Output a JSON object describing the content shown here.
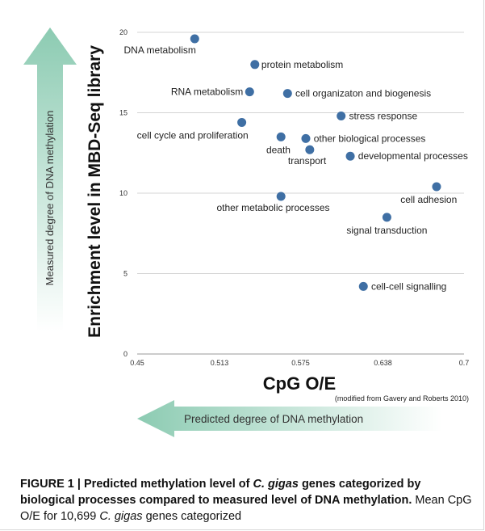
{
  "chart_data": {
    "type": "scatter",
    "ylabel": "Enrichment level in MBD-Seq library",
    "xlabel": "CpG O/E",
    "source_note": "(modified from Gavery and Roberts 2010)",
    "xlim": [
      0.45,
      0.7
    ],
    "ylim": [
      0,
      20
    ],
    "x_ticks": [
      "0.45",
      "0.513",
      "0.575",
      "0.638",
      "0.7"
    ],
    "y_ticks": [
      "0",
      "5",
      "10",
      "15",
      "20"
    ],
    "points": [
      {
        "label": "DNA metabolism",
        "x": 0.494,
        "y": 19.6,
        "anchor": "end",
        "lx": 0.495,
        "ly": 18.9
      },
      {
        "label": "protein metabolism",
        "x": 0.54,
        "y": 18.0,
        "anchor": "start",
        "lx": 0.545,
        "ly": 18.0
      },
      {
        "label": "RNA metabolism",
        "x": 0.536,
        "y": 16.3,
        "anchor": "end",
        "lx": 0.531,
        "ly": 16.3
      },
      {
        "label": "cell organizaton and biogenesis",
        "x": 0.565,
        "y": 16.2,
        "anchor": "start",
        "lx": 0.571,
        "ly": 16.2
      },
      {
        "label": "stress response",
        "x": 0.606,
        "y": 14.8,
        "anchor": "start",
        "lx": 0.612,
        "ly": 14.8
      },
      {
        "label": "cell cycle and proliferation",
        "x": 0.53,
        "y": 14.4,
        "anchor": "end",
        "lx": 0.535,
        "ly": 13.6
      },
      {
        "label": "death",
        "x": 0.56,
        "y": 13.5,
        "anchor": "middle",
        "lx": 0.558,
        "ly": 12.7
      },
      {
        "label": "other biological processes",
        "x": 0.579,
        "y": 13.4,
        "anchor": "start",
        "lx": 0.585,
        "ly": 13.4
      },
      {
        "label": "transport",
        "x": 0.582,
        "y": 12.7,
        "anchor": "middle",
        "lx": 0.58,
        "ly": 12.0
      },
      {
        "label": "developmental processes",
        "x": 0.613,
        "y": 12.3,
        "anchor": "start",
        "lx": 0.619,
        "ly": 12.3
      },
      {
        "label": "cell adhesion",
        "x": 0.679,
        "y": 10.4,
        "anchor": "middle",
        "lx": 0.673,
        "ly": 9.6
      },
      {
        "label": "other metabolic processes",
        "x": 0.56,
        "y": 9.8,
        "anchor": "middle",
        "lx": 0.554,
        "ly": 9.1
      },
      {
        "label": "signal transduction",
        "x": 0.641,
        "y": 8.5,
        "anchor": "middle",
        "lx": 0.641,
        "ly": 7.7
      },
      {
        "label": "cell-cell signalling",
        "x": 0.623,
        "y": 4.2,
        "anchor": "start",
        "lx": 0.629,
        "ly": 4.2
      }
    ]
  },
  "arrows": {
    "vertical_label": "Measured degree of DNA methylation",
    "horizontal_label": "Predicted degree of DNA methylation",
    "arrow_color": "#8ccbb2"
  },
  "caption": {
    "figure_label": "FIGURE 1 |",
    "title_part1": "Predicted methylation level of",
    "species_1": "C. gigas",
    "title_part2": "genes categorized by biological processes compared to measured level of DNA methylation.",
    "body_part1": "Mean CpG O/E for 10,699",
    "species_2": "C. gigas",
    "body_part2": "genes categorized"
  },
  "colors": {
    "point": "#3f6fa4",
    "grid": "#d4d4d4"
  }
}
